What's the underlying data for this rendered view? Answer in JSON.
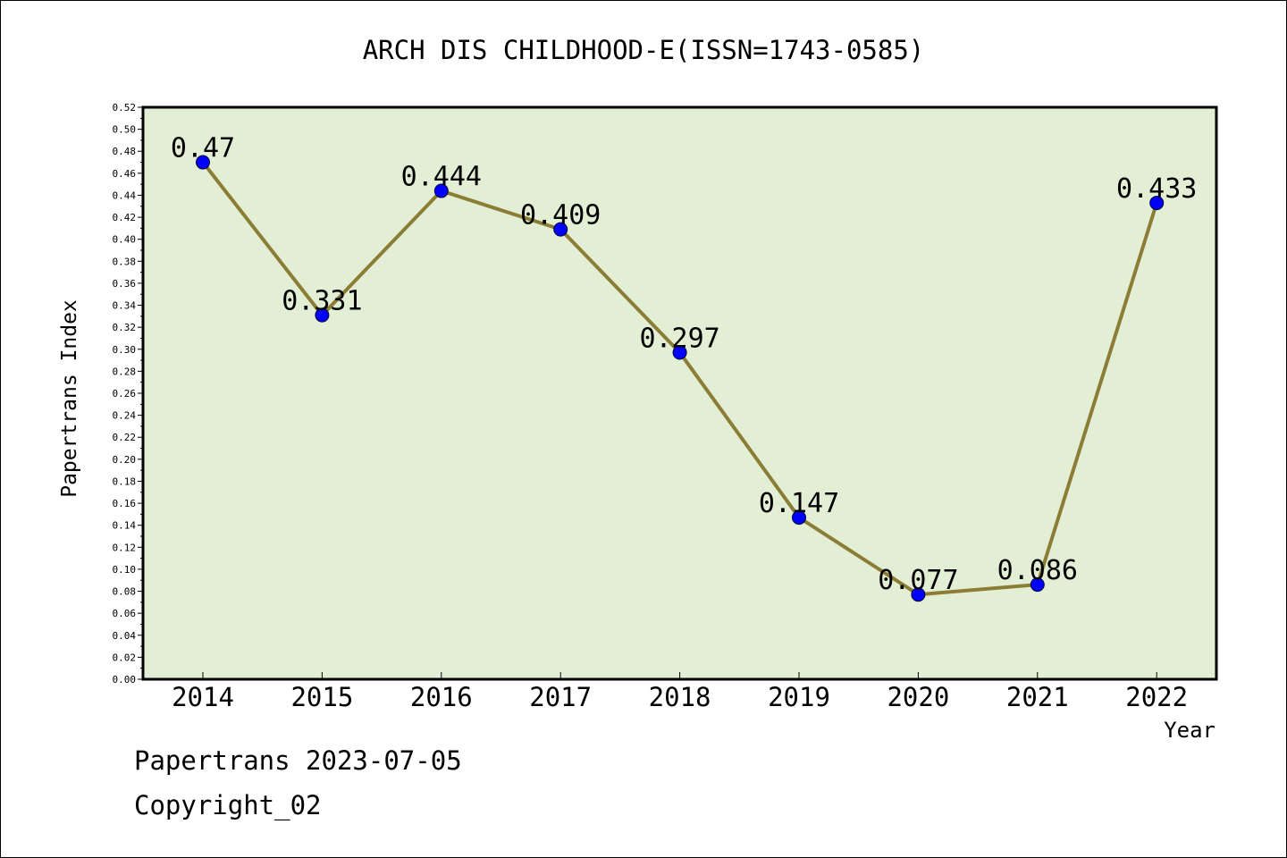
{
  "chart_data": {
    "type": "line",
    "title": "ARCH DIS CHILDHOOD-E(ISSN=1743-0585)",
    "xlabel": "Year",
    "ylabel": "Papertrans Index",
    "categories": [
      "2014",
      "2015",
      "2016",
      "2017",
      "2018",
      "2019",
      "2020",
      "2021",
      "2022"
    ],
    "values": [
      0.47,
      0.331,
      0.444,
      0.409,
      0.297,
      0.147,
      0.077,
      0.086,
      0.433
    ],
    "data_labels": [
      "0.47",
      "0.331",
      "0.444",
      "0.409",
      "0.297",
      "0.147",
      "0.077",
      "0.086",
      "0.433"
    ],
    "ylim": [
      0,
      0.52
    ],
    "ytick_step": 0.02,
    "ytick_labels": [
      "0.00",
      "0.02",
      "0.04",
      "0.06",
      "0.08",
      "0.10",
      "0.12",
      "0.14",
      "0.16",
      "0.18",
      "0.20",
      "0.22",
      "0.24",
      "0.26",
      "0.28",
      "0.30",
      "0.32",
      "0.34",
      "0.36",
      "0.38",
      "0.40",
      "0.42",
      "0.44",
      "0.46",
      "0.48",
      "0.50",
      "0.52"
    ],
    "grid": false,
    "legend": "none",
    "colors": {
      "plot_background": "#e2efd5",
      "line": "#8b7d35",
      "marker": "#0000ff"
    }
  },
  "footer": {
    "line1": "Papertrans 2023-07-05",
    "line2": "Copyright_02"
  }
}
